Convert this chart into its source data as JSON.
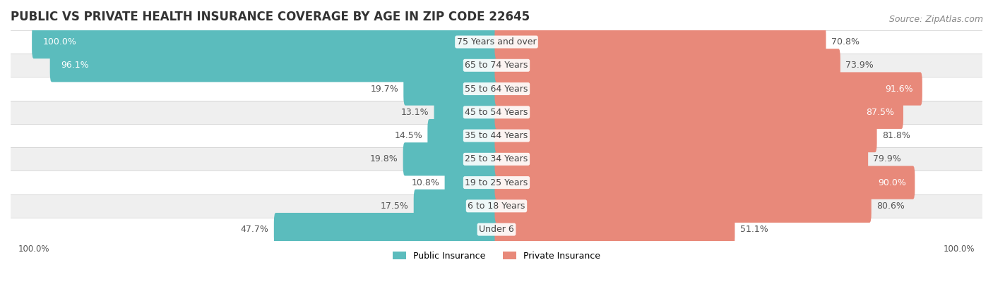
{
  "title": "PUBLIC VS PRIVATE HEALTH INSURANCE COVERAGE BY AGE IN ZIP CODE 22645",
  "source": "Source: ZipAtlas.com",
  "categories": [
    "Under 6",
    "6 to 18 Years",
    "19 to 25 Years",
    "25 to 34 Years",
    "35 to 44 Years",
    "45 to 54 Years",
    "55 to 64 Years",
    "65 to 74 Years",
    "75 Years and over"
  ],
  "public_values": [
    47.7,
    17.5,
    10.8,
    19.8,
    14.5,
    13.1,
    19.7,
    96.1,
    100.0
  ],
  "private_values": [
    51.1,
    80.6,
    90.0,
    79.9,
    81.8,
    87.5,
    91.6,
    73.9,
    70.8
  ],
  "public_color": "#5bbcbd",
  "private_color": "#e8897a",
  "row_bg_colors": [
    "#ffffff",
    "#efefef"
  ],
  "max_value": 100.0,
  "title_fontsize": 12,
  "label_fontsize": 9,
  "tick_fontsize": 8.5,
  "source_fontsize": 9
}
